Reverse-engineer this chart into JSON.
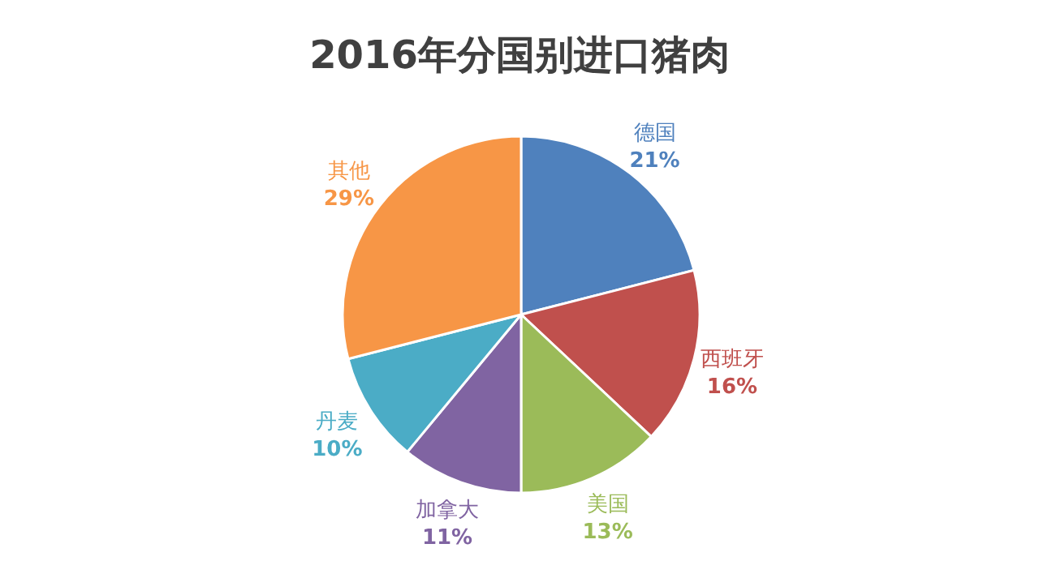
{
  "chart_data": {
    "type": "pie",
    "title": "2016年分国别进口猪肉",
    "categories": [
      "德国",
      "西班牙",
      "美国",
      "加拿大",
      "丹麦",
      "其他"
    ],
    "values": [
      21,
      16,
      13,
      11,
      10,
      29
    ],
    "value_labels": [
      "21%",
      "16%",
      "13%",
      "11%",
      "10%",
      "29%"
    ],
    "colors": [
      "#4f81bd",
      "#c0504d",
      "#9bbb59",
      "#8064a2",
      "#4bacc6",
      "#f79646"
    ]
  }
}
